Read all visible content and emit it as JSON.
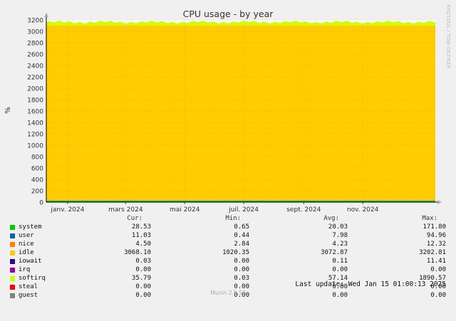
{
  "chart_data": {
    "type": "area",
    "title": "CPU usage - by year",
    "ylabel": "%",
    "watermark": "RRDTOOL / TOBI OETIKER",
    "ylim": [
      0,
      3200
    ],
    "yticks": [
      0,
      200,
      400,
      600,
      800,
      1000,
      1200,
      1400,
      1600,
      1800,
      2000,
      2200,
      2400,
      2600,
      2800,
      3000,
      3200
    ],
    "xlim": [
      "2023-12-10",
      "2025-01-15"
    ],
    "xticks": [
      {
        "label": "janv. 2024",
        "date": "2024-01-01"
      },
      {
        "label": "mars 2024",
        "date": "2024-03-01"
      },
      {
        "label": "mai 2024",
        "date": "2024-05-01"
      },
      {
        "label": "juil. 2024",
        "date": "2024-07-01"
      },
      {
        "label": "sept. 2024",
        "date": "2024-09-01"
      },
      {
        "label": "nov. 2024",
        "date": "2024-11-01"
      }
    ],
    "grid": true,
    "stacked": true,
    "series": [
      {
        "name": "system",
        "color": "#00cc00",
        "level": 20.03
      },
      {
        "name": "user",
        "color": "#0066b3",
        "level": 7.98
      },
      {
        "name": "nice",
        "color": "#ff8000",
        "level": 4.23
      },
      {
        "name": "idle",
        "color": "#ffcc00",
        "level": 3072.87
      },
      {
        "name": "iowait",
        "color": "#330099",
        "level": 0.11
      },
      {
        "name": "irq",
        "color": "#990099",
        "level": 0.0
      },
      {
        "name": "softirq",
        "color": "#ccff00",
        "level": 57.14
      },
      {
        "name": "steal",
        "color": "#ff0000",
        "level": 0.0
      },
      {
        "name": "guest",
        "color": "#808080",
        "level": 0.0
      }
    ]
  },
  "legend": {
    "headers": {
      "cur": "Cur:",
      "min": "Min:",
      "avg": "Avg:",
      "max": "Max:"
    },
    "rows": [
      {
        "name": "system",
        "cur": "28.53",
        "min": "0.65",
        "avg": "20.03",
        "max": "171.80"
      },
      {
        "name": "user",
        "cur": "11.03",
        "min": "0.44",
        "avg": "7.98",
        "max": "94.96"
      },
      {
        "name": "nice",
        "cur": "4.50",
        "min": "2.84",
        "avg": "4.23",
        "max": "12.32"
      },
      {
        "name": "idle",
        "cur": "3068.10",
        "min": "1020.35",
        "avg": "3072.87",
        "max": "3202.81"
      },
      {
        "name": "iowait",
        "cur": "0.03",
        "min": "0.00",
        "avg": "0.11",
        "max": "11.41"
      },
      {
        "name": "irq",
        "cur": "0.00",
        "min": "0.00",
        "avg": "0.00",
        "max": "0.00"
      },
      {
        "name": "softirq",
        "cur": "35.79",
        "min": "0.03",
        "avg": "57.14",
        "max": "1890.57"
      },
      {
        "name": "steal",
        "cur": "0.00",
        "min": "0.00",
        "avg": "0.00",
        "max": "0.00"
      },
      {
        "name": "guest",
        "cur": "0.00",
        "min": "0.00",
        "avg": "0.00",
        "max": "0.00"
      }
    ]
  },
  "footer": {
    "last_update": "Last update: Wed Jan 15 01:00:13 2025",
    "munin_version": "Munin 2.0.57"
  }
}
